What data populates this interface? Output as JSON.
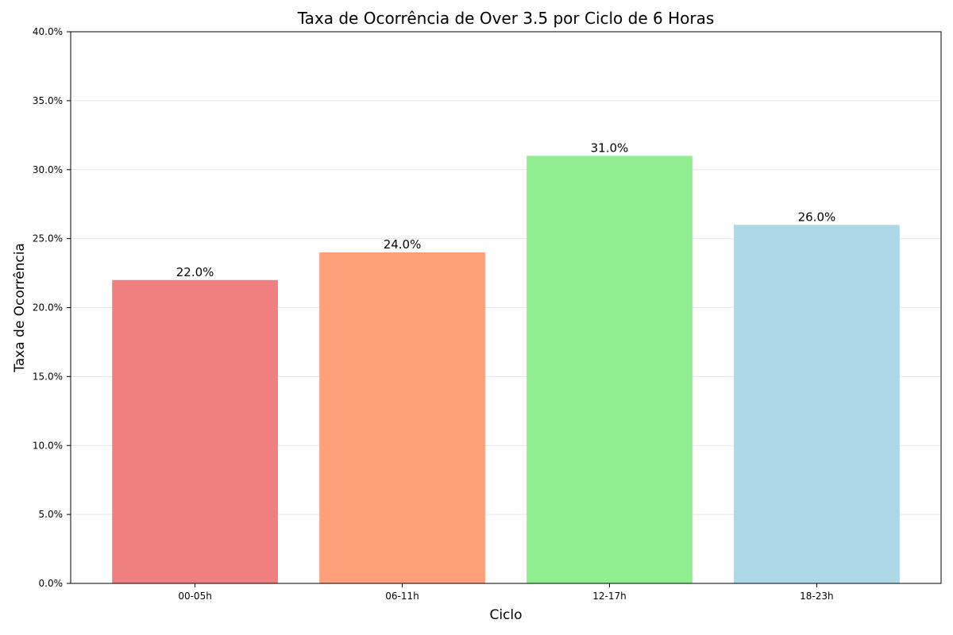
{
  "chart_data": {
    "type": "bar",
    "title": "Taxa de Ocorrência de Over 3.5 por Ciclo de 6 Horas",
    "xlabel": "Ciclo",
    "ylabel": "Taxa de Ocorrência",
    "categories": [
      "00-05h",
      "06-11h",
      "12-17h",
      "18-23h"
    ],
    "values": [
      22.0,
      24.0,
      31.0,
      26.0
    ],
    "value_labels": [
      "22.0%",
      "24.0%",
      "31.0%",
      "26.0%"
    ],
    "colors": [
      "#f08080",
      "#ffa07a",
      "#90ee90",
      "#add8e6"
    ],
    "ylim": [
      0,
      40
    ],
    "yticks": [
      0,
      5,
      10,
      15,
      20,
      25,
      30,
      35,
      40
    ],
    "ytick_labels": [
      "0.0%",
      "5.0%",
      "10.0%",
      "15.0%",
      "20.0%",
      "25.0%",
      "30.0%",
      "35.0%",
      "40.0%"
    ],
    "grid": "y",
    "legend": "none"
  }
}
